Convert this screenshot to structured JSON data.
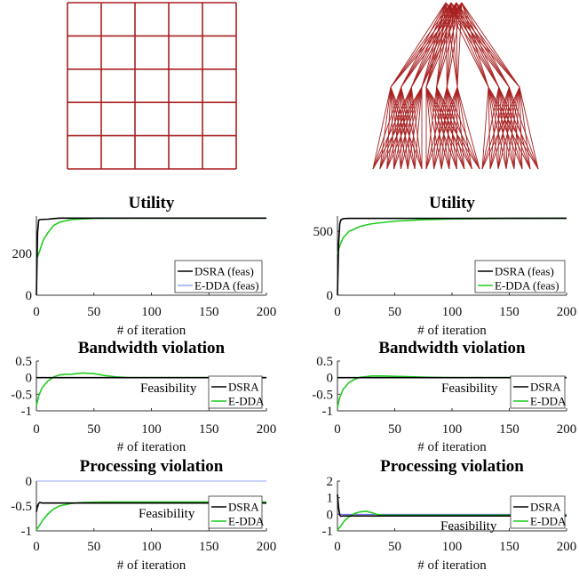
{
  "colors": {
    "topology": "#a81f1f",
    "dsra": "#000000",
    "edda": "#22cc22",
    "edda_feas_left": "#9aa7ff",
    "reference": "#5a5aff",
    "reference_teal": "#2f8f8f"
  },
  "topologies": [
    {
      "kind": "grid",
      "rows": 5,
      "cols": 5
    },
    {
      "kind": "tree"
    }
  ],
  "chart_data": [
    {
      "type": "line",
      "title": "Utility",
      "xlabel": "# of iteration",
      "ylabel": "",
      "xlim": [
        0,
        200
      ],
      "ylim": [
        0,
        380
      ],
      "yticks": [
        0,
        200
      ],
      "xticks": [
        0,
        50,
        100,
        150,
        200
      ],
      "legend": {
        "entries": [
          "DSRA (feas)",
          "E-DDA (feas)"
        ],
        "position": "bottom-right"
      },
      "series": [
        {
          "name": "DSRA (feas)",
          "color": "dsra",
          "x": [
            0,
            1,
            2,
            3,
            5,
            10,
            15,
            20,
            40,
            200
          ],
          "y": [
            0,
            300,
            360,
            363,
            364,
            365,
            368,
            370,
            370,
            370
          ]
        },
        {
          "name": "E-DDA (feas)",
          "color": "edda",
          "x": [
            0,
            1,
            3,
            6,
            10,
            15,
            20,
            30,
            50,
            100,
            200
          ],
          "y": [
            175,
            185,
            215,
            265,
            300,
            335,
            350,
            363,
            369,
            370,
            370
          ]
        }
      ]
    },
    {
      "type": "line",
      "title": "Utility",
      "xlabel": "# of iteration",
      "ylabel": "",
      "xlim": [
        0,
        200
      ],
      "ylim": [
        0,
        620
      ],
      "yticks": [
        0,
        500
      ],
      "xticks": [
        0,
        50,
        100,
        150,
        200
      ],
      "legend": {
        "entries": [
          "DSRA (feas)",
          "E-DDA (feas)"
        ],
        "position": "bottom-right"
      },
      "series": [
        {
          "name": "DSRA (feas)",
          "color": "dsra",
          "x": [
            0,
            1,
            2,
            3,
            5,
            10,
            200
          ],
          "y": [
            0,
            400,
            560,
            590,
            600,
            602,
            603
          ]
        },
        {
          "name": "E-DDA (feas)",
          "color": "edda",
          "x": [
            0,
            1,
            3,
            5,
            10,
            20,
            30,
            50,
            75,
            100,
            150,
            200
          ],
          "y": [
            320,
            360,
            410,
            450,
            500,
            540,
            560,
            580,
            592,
            598,
            602,
            603
          ]
        }
      ]
    },
    {
      "type": "line",
      "title": "Bandwidth violation",
      "xlabel": "# of iteration",
      "ylabel": "",
      "xlim": [
        0,
        200
      ],
      "ylim": [
        -1,
        0.5
      ],
      "yticks": [
        0.5,
        0,
        -0.5,
        -1
      ],
      "ytick_labels": [
        "0.5",
        "0",
        "-0.5",
        "-1"
      ],
      "xticks": [
        0,
        50,
        100,
        150,
        200
      ],
      "legend": {
        "entries": [
          "DSRA",
          "E-DDA"
        ],
        "position": "bottom-right"
      },
      "annotation": "Feasibility",
      "series": [
        {
          "name": "DSRA",
          "color": "dsra",
          "x": [
            0,
            200
          ],
          "y": [
            0,
            0
          ]
        },
        {
          "name": "E-DDA",
          "color": "edda",
          "x": [
            0,
            2,
            5,
            10,
            15,
            20,
            25,
            30,
            40,
            50,
            60,
            70,
            80,
            100,
            200
          ],
          "y": [
            -0.85,
            -0.55,
            -0.3,
            -0.1,
            0.02,
            0.08,
            0.1,
            0.1,
            0.14,
            0.12,
            0.06,
            0.02,
            0.0,
            0.0,
            0.0
          ]
        },
        {
          "name": "",
          "color": "reference",
          "x": [
            0,
            200
          ],
          "y": [
            0,
            0
          ]
        }
      ]
    },
    {
      "type": "line",
      "title": "Bandwidth violation",
      "xlabel": "# of iteration",
      "ylabel": "",
      "xlim": [
        0,
        200
      ],
      "ylim": [
        -1,
        0.5
      ],
      "yticks": [
        0.5,
        0,
        -0.5,
        -1
      ],
      "ytick_labels": [
        "0.5",
        "0",
        "-0.5",
        "-1"
      ],
      "xticks": [
        0,
        50,
        100,
        150,
        200
      ],
      "legend": {
        "entries": [
          "DSRA",
          "E-DDA"
        ],
        "position": "bottom-right"
      },
      "annotation": "Feasibility",
      "series": [
        {
          "name": "DSRA",
          "color": "dsra",
          "x": [
            0,
            200
          ],
          "y": [
            0,
            0
          ]
        },
        {
          "name": "E-DDA",
          "color": "edda",
          "x": [
            0,
            2,
            5,
            10,
            15,
            20,
            30,
            40,
            60,
            80,
            100,
            200
          ],
          "y": [
            -0.9,
            -0.6,
            -0.35,
            -0.15,
            -0.05,
            0.01,
            0.05,
            0.05,
            0.03,
            0.01,
            0.0,
            0.0
          ]
        },
        {
          "name": "",
          "color": "reference_teal",
          "x": [
            0,
            200
          ],
          "y": [
            0,
            0
          ]
        }
      ]
    },
    {
      "type": "line",
      "title": "Processing violation",
      "xlabel": "# of iteration",
      "ylabel": "",
      "xlim": [
        0,
        200
      ],
      "ylim": [
        -1,
        0
      ],
      "yticks": [
        0,
        -0.5,
        -1
      ],
      "ytick_labels": [
        "0",
        "-0.5",
        "-1"
      ],
      "xticks": [
        0,
        50,
        100,
        150,
        200
      ],
      "legend": {
        "entries": [
          "DSRA",
          "E-DDA"
        ],
        "position": "bottom-right"
      },
      "annotation": "Feasibility",
      "series": [
        {
          "name": "DSRA",
          "color": "dsra",
          "x": [
            0,
            1,
            2,
            3,
            5,
            10,
            200
          ],
          "y": [
            -0.62,
            -0.5,
            -0.45,
            -0.43,
            -0.44,
            -0.44,
            -0.44
          ]
        },
        {
          "name": "E-DDA",
          "color": "edda",
          "x": [
            0,
            3,
            6,
            10,
            15,
            20,
            30,
            40,
            60,
            200
          ],
          "y": [
            -0.98,
            -0.88,
            -0.77,
            -0.66,
            -0.56,
            -0.5,
            -0.45,
            -0.43,
            -0.42,
            -0.42
          ]
        },
        {
          "name": "",
          "color": "edda_feas_left",
          "x": [
            0,
            200
          ],
          "y": [
            0,
            0
          ]
        }
      ]
    },
    {
      "type": "line",
      "title": "Processing violation",
      "xlabel": "# of iteration",
      "ylabel": "",
      "xlim": [
        0,
        200
      ],
      "ylim": [
        -1,
        2
      ],
      "yticks": [
        2,
        1,
        0,
        -1
      ],
      "ytick_labels": [
        "2",
        "1",
        "0",
        "-1"
      ],
      "xticks": [
        0,
        50,
        100,
        150,
        200
      ],
      "legend": {
        "entries": [
          "DSRA",
          "E-DDA"
        ],
        "position": "bottom-right"
      },
      "annotation": "Feasibility",
      "series": [
        {
          "name": "DSRA",
          "color": "dsra",
          "x": [
            0,
            1,
            2,
            3,
            5,
            10,
            200
          ],
          "y": [
            1.2,
            0.4,
            -0.05,
            -0.12,
            -0.1,
            -0.1,
            -0.1
          ]
        },
        {
          "name": "E-DDA",
          "color": "edda",
          "x": [
            0,
            3,
            6,
            10,
            15,
            20,
            25,
            30,
            35,
            40,
            50,
            200
          ],
          "y": [
            -0.95,
            -0.7,
            -0.4,
            -0.15,
            0.05,
            0.15,
            0.18,
            0.1,
            -0.02,
            -0.05,
            -0.05,
            -0.05
          ]
        },
        {
          "name": "",
          "color": "reference",
          "x": [
            0,
            200
          ],
          "y": [
            0,
            0
          ]
        }
      ]
    }
  ]
}
